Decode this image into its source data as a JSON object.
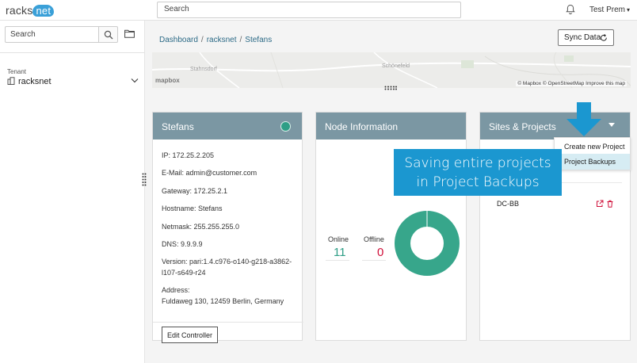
{
  "header": {
    "logo_text": "racks",
    "logo_badge": "net",
    "search_placeholder": "Search",
    "user_name": "Test Prem"
  },
  "sidebar": {
    "search_placeholder": "Search",
    "tenant_label": "Tenant",
    "tenant_value": "racksnet"
  },
  "breadcrumb": [
    "Dashboard",
    "racksnet",
    "Stefans"
  ],
  "sync_label": "Sync Data",
  "map": {
    "label_left": "Stahnsdorf",
    "label_right": "Schönefeld",
    "logo": "mapbox",
    "credit": "© Mapbox © OpenStreetMap Improve this map"
  },
  "controller": {
    "title": "Stefans",
    "status_color": "#2e9e86",
    "ip": "IP: 172.25.2.205",
    "email": "E-Mail: admin@customer.com",
    "gateway": "Gateway: 172.25.2.1",
    "hostname": "Hostname: Stefans",
    "netmask": "Netmask: 255.255.255.0",
    "dns": "DNS: 9.9.9.9",
    "version_line1": "Version: pari:1.4.c976-o140-g218-a3862-",
    "version_line2": "l107-s649-r24",
    "address_label": "Address:",
    "address_value": "Fuldaweg 130, 12459 Berlin, Germany",
    "edit_label": "Edit Controller"
  },
  "node_info": {
    "title": "Node Information",
    "online_label": "Online",
    "online_value": "11",
    "offline_label": "Offline",
    "offline_value": "0",
    "online_color": "#2e9e86",
    "offline_color": "#d0103a"
  },
  "sites": {
    "title": "Sites & Projects",
    "menu_items": [
      "Create new Project",
      "Project Backups"
    ],
    "site_name": "DC-BB"
  },
  "callout": {
    "line1": "Saving entire projects",
    "line2": "in Project Backups"
  }
}
